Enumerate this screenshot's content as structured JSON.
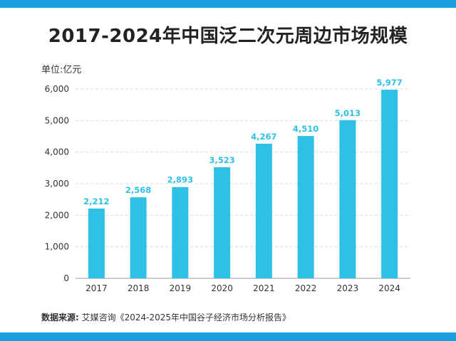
{
  "title": "2017-2024年中国泛二次元周边市场规模",
  "unit_label": "单位:亿元",
  "source": {
    "label": "数据来源:",
    "text": " 艾媒咨询《2024-2025年中国谷子经济市场分析报告》"
  },
  "colors": {
    "bar": "#2fc0e6",
    "label": "#2fc0e6",
    "accent": "#1a9fe0",
    "grid": "#dddddd"
  },
  "chart_data": {
    "type": "bar",
    "title": "2017-2024年中国泛二次元周边市场规模",
    "ylabel": "单位:亿元",
    "xlabel": "",
    "categories": [
      "2017",
      "2018",
      "2019",
      "2020",
      "2021",
      "2022",
      "2023",
      "2024"
    ],
    "values": [
      2212,
      2568,
      2893,
      3523,
      4267,
      4510,
      5013,
      5977
    ],
    "value_labels": [
      "2,212",
      "2,568",
      "2,893",
      "3,523",
      "4,267",
      "4,510",
      "5,013",
      "5,977"
    ],
    "ylim": [
      0,
      6000
    ],
    "yticks": [
      0,
      1000,
      2000,
      3000,
      4000,
      5000,
      6000
    ],
    "ytick_labels": [
      "0",
      "1,000",
      "2,000",
      "3,000",
      "4,000",
      "5,000",
      "6,000"
    ],
    "grid": true,
    "legend": "none"
  }
}
